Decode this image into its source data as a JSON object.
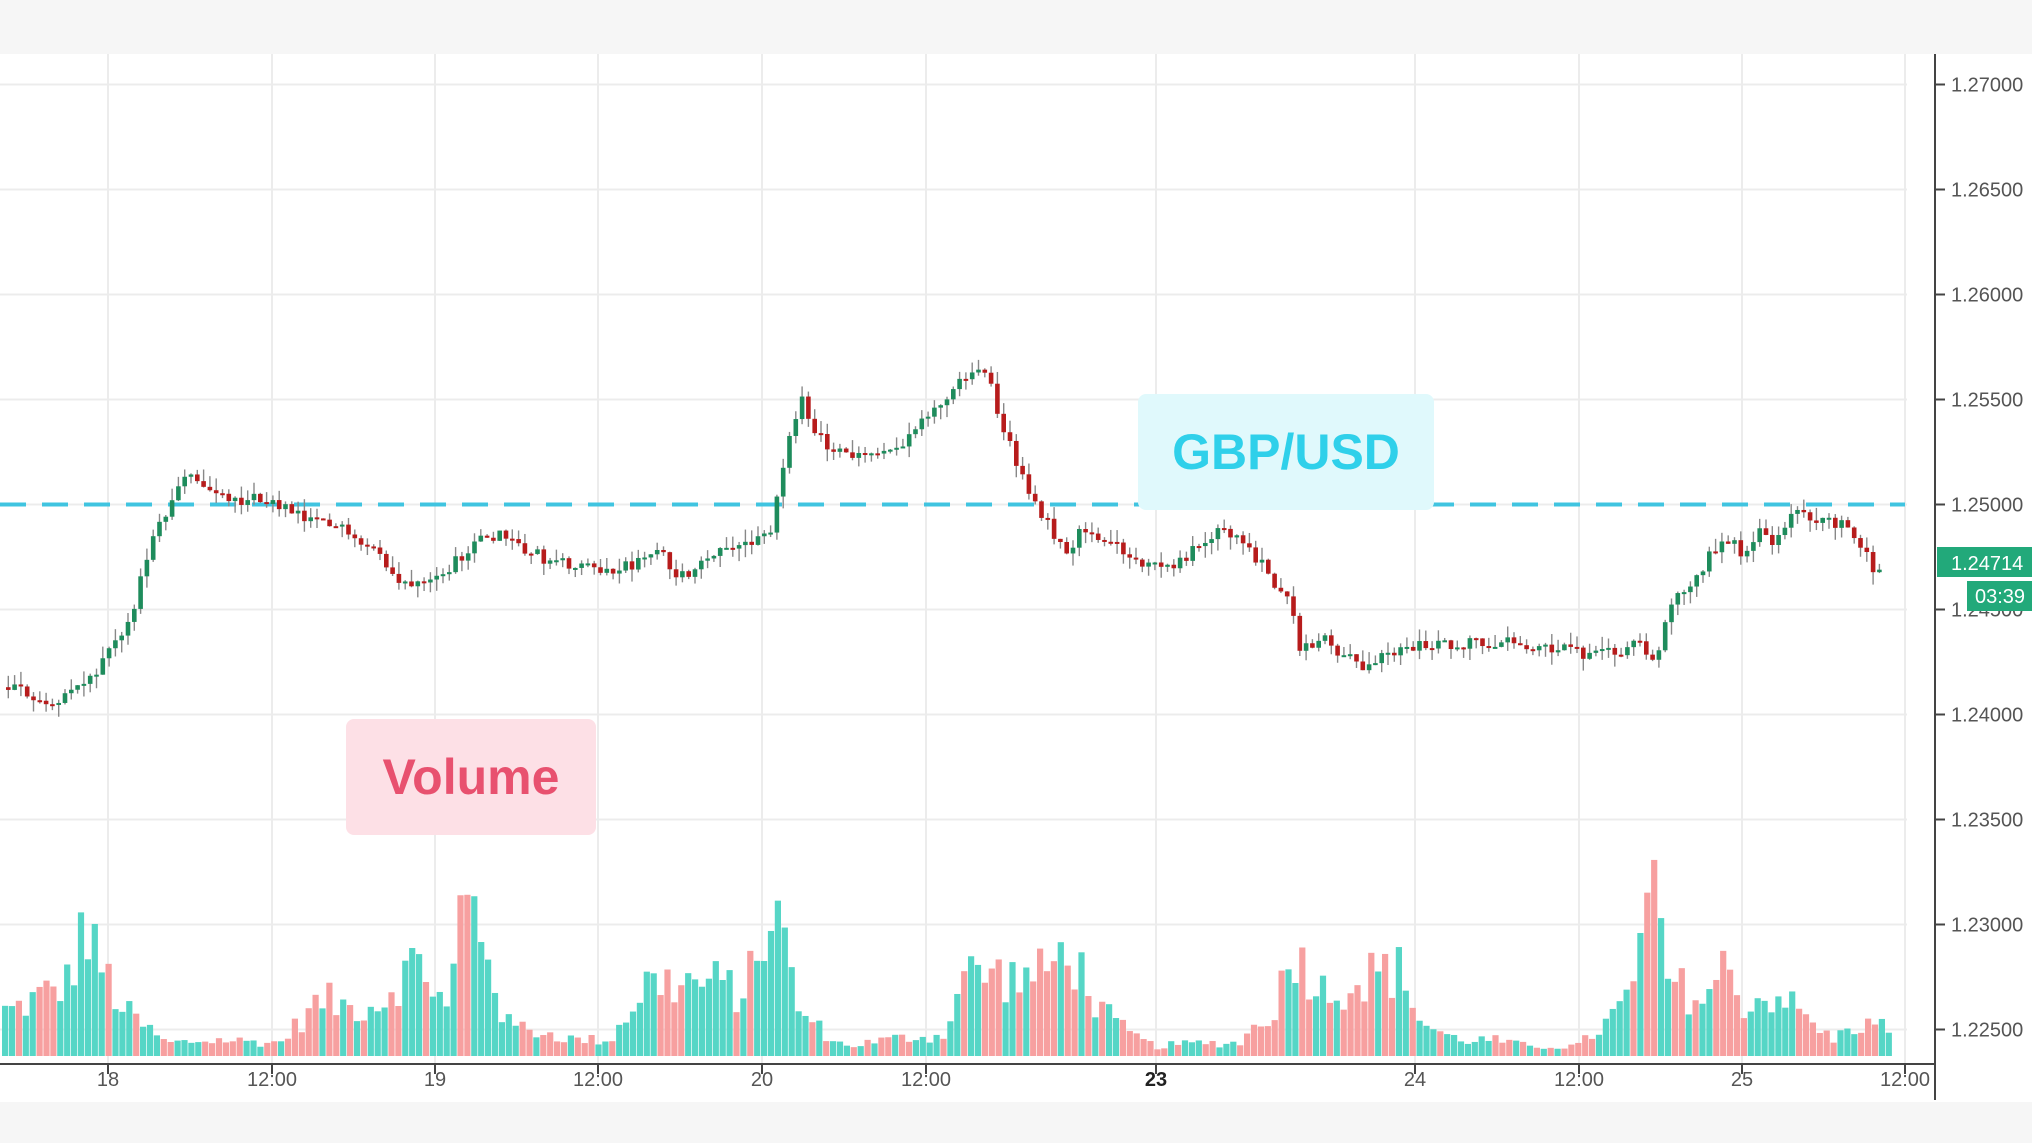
{
  "chart_data": {
    "type": "candlestick",
    "instrument": "GBP/USD",
    "x_tick_labels": [
      {
        "label": "18",
        "bold": false
      },
      {
        "label": "12:00",
        "bold": false
      },
      {
        "label": "19",
        "bold": false
      },
      {
        "label": "12:00",
        "bold": false
      },
      {
        "label": "20",
        "bold": false
      },
      {
        "label": "12:00",
        "bold": false
      },
      {
        "label": "23",
        "bold": true
      },
      {
        "label": "24",
        "bold": false
      },
      {
        "label": "12:00",
        "bold": false
      },
      {
        "label": "25",
        "bold": false
      },
      {
        "label": "12:00",
        "bold": false
      }
    ],
    "y_tick_labels": [
      "1.27000",
      "1.26500",
      "1.26000",
      "1.25500",
      "1.25000",
      "1.24500",
      "1.24000",
      "1.23500",
      "1.23000",
      "1.22500"
    ],
    "ylim": [
      1.2245,
      1.2705
    ],
    "resistance_level": 1.25,
    "current_price_label": "1.24714",
    "countdown_label": "03:39",
    "price_path": [
      {
        "t": 0,
        "p": 1.2413
      },
      {
        "t": 6,
        "p": 1.2405
      },
      {
        "t": 12,
        "p": 1.2418
      },
      {
        "t": 17,
        "p": 1.2445
      },
      {
        "t": 20,
        "p": 1.2482
      },
      {
        "t": 23,
        "p": 1.25
      },
      {
        "t": 25,
        "p": 1.2517
      },
      {
        "t": 28,
        "p": 1.2506
      },
      {
        "t": 32,
        "p": 1.2501
      },
      {
        "t": 36,
        "p": 1.2503
      },
      {
        "t": 42,
        "p": 1.2492
      },
      {
        "t": 48,
        "p": 1.2488
      },
      {
        "t": 52,
        "p": 1.2478
      },
      {
        "t": 55,
        "p": 1.2462
      },
      {
        "t": 58,
        "p": 1.2465
      },
      {
        "t": 62,
        "p": 1.247
      },
      {
        "t": 66,
        "p": 1.2482
      },
      {
        "t": 70,
        "p": 1.2487
      },
      {
        "t": 73,
        "p": 1.2479
      },
      {
        "t": 76,
        "p": 1.2474
      },
      {
        "t": 80,
        "p": 1.247
      },
      {
        "t": 84,
        "p": 1.2468
      },
      {
        "t": 88,
        "p": 1.2471
      },
      {
        "t": 92,
        "p": 1.2477
      },
      {
        "t": 95,
        "p": 1.2465
      },
      {
        "t": 98,
        "p": 1.2474
      },
      {
        "t": 102,
        "p": 1.2482
      },
      {
        "t": 105,
        "p": 1.248
      },
      {
        "t": 108,
        "p": 1.249
      },
      {
        "t": 110,
        "p": 1.2525
      },
      {
        "t": 112,
        "p": 1.255
      },
      {
        "t": 115,
        "p": 1.253
      },
      {
        "t": 119,
        "p": 1.2524
      },
      {
        "t": 124,
        "p": 1.2523
      },
      {
        "t": 128,
        "p": 1.2535
      },
      {
        "t": 132,
        "p": 1.2548
      },
      {
        "t": 135,
        "p": 1.256
      },
      {
        "t": 138,
        "p": 1.2565
      },
      {
        "t": 140,
        "p": 1.2545
      },
      {
        "t": 142,
        "p": 1.2525
      },
      {
        "t": 145,
        "p": 1.2502
      },
      {
        "t": 148,
        "p": 1.2486
      },
      {
        "t": 150,
        "p": 1.2478
      },
      {
        "t": 152,
        "p": 1.249
      },
      {
        "t": 155,
        "p": 1.2484
      },
      {
        "t": 158,
        "p": 1.2476
      },
      {
        "t": 162,
        "p": 1.247
      },
      {
        "t": 166,
        "p": 1.2472
      },
      {
        "t": 170,
        "p": 1.2486
      },
      {
        "t": 174,
        "p": 1.2487
      },
      {
        "t": 178,
        "p": 1.2468
      },
      {
        "t": 181,
        "p": 1.2455
      },
      {
        "t": 183,
        "p": 1.243
      },
      {
        "t": 186,
        "p": 1.2436
      },
      {
        "t": 189,
        "p": 1.2428
      },
      {
        "t": 192,
        "p": 1.2422
      },
      {
        "t": 196,
        "p": 1.243
      },
      {
        "t": 200,
        "p": 1.2433
      },
      {
        "t": 205,
        "p": 1.2434
      },
      {
        "t": 210,
        "p": 1.2435
      },
      {
        "t": 215,
        "p": 1.2433
      },
      {
        "t": 220,
        "p": 1.2432
      },
      {
        "t": 224,
        "p": 1.2427
      },
      {
        "t": 228,
        "p": 1.243
      },
      {
        "t": 231,
        "p": 1.2436
      },
      {
        "t": 233,
        "p": 1.2424
      },
      {
        "t": 236,
        "p": 1.2458
      },
      {
        "t": 239,
        "p": 1.2465
      },
      {
        "t": 241,
        "p": 1.2478
      },
      {
        "t": 244,
        "p": 1.2483
      },
      {
        "t": 246,
        "p": 1.2475
      },
      {
        "t": 248,
        "p": 1.2488
      },
      {
        "t": 250,
        "p": 1.2482
      },
      {
        "t": 253,
        "p": 1.2496
      },
      {
        "t": 257,
        "p": 1.2492
      },
      {
        "t": 260,
        "p": 1.2491
      },
      {
        "t": 262,
        "p": 1.2482
      },
      {
        "t": 264,
        "p": 1.247
      }
    ],
    "volume_peaks": [
      {
        "t": 0,
        "v": 0.28
      },
      {
        "t": 8,
        "v": 0.45
      },
      {
        "t": 10,
        "v": 0.78
      },
      {
        "t": 12,
        "v": 0.62
      },
      {
        "t": 16,
        "v": 0.28
      },
      {
        "t": 22,
        "v": 0.08
      },
      {
        "t": 30,
        "v": 0.1
      },
      {
        "t": 38,
        "v": 0.08
      },
      {
        "t": 44,
        "v": 0.35
      },
      {
        "t": 48,
        "v": 0.3
      },
      {
        "t": 52,
        "v": 0.32
      },
      {
        "t": 55,
        "v": 0.48
      },
      {
        "t": 58,
        "v": 0.6
      },
      {
        "t": 62,
        "v": 0.25
      },
      {
        "t": 64,
        "v": 1.0
      },
      {
        "t": 67,
        "v": 0.78
      },
      {
        "t": 70,
        "v": 0.2
      },
      {
        "t": 75,
        "v": 0.15
      },
      {
        "t": 80,
        "v": 0.1
      },
      {
        "t": 85,
        "v": 0.1
      },
      {
        "t": 90,
        "v": 0.45
      },
      {
        "t": 95,
        "v": 0.45
      },
      {
        "t": 100,
        "v": 0.45
      },
      {
        "t": 104,
        "v": 0.38
      },
      {
        "t": 108,
        "v": 0.95
      },
      {
        "t": 112,
        "v": 0.25
      },
      {
        "t": 118,
        "v": 0.06
      },
      {
        "t": 124,
        "v": 0.1
      },
      {
        "t": 128,
        "v": 0.12
      },
      {
        "t": 132,
        "v": 0.12
      },
      {
        "t": 135,
        "v": 0.5
      },
      {
        "t": 138,
        "v": 0.52
      },
      {
        "t": 142,
        "v": 0.48
      },
      {
        "t": 146,
        "v": 0.5
      },
      {
        "t": 150,
        "v": 0.67
      },
      {
        "t": 154,
        "v": 0.3
      },
      {
        "t": 158,
        "v": 0.15
      },
      {
        "t": 162,
        "v": 0.06
      },
      {
        "t": 168,
        "v": 0.08
      },
      {
        "t": 174,
        "v": 0.08
      },
      {
        "t": 179,
        "v": 0.3
      },
      {
        "t": 182,
        "v": 0.66
      },
      {
        "t": 186,
        "v": 0.4
      },
      {
        "t": 190,
        "v": 0.45
      },
      {
        "t": 194,
        "v": 0.52
      },
      {
        "t": 197,
        "v": 0.52
      },
      {
        "t": 200,
        "v": 0.2
      },
      {
        "t": 205,
        "v": 0.1
      },
      {
        "t": 210,
        "v": 0.1
      },
      {
        "t": 215,
        "v": 0.06
      },
      {
        "t": 222,
        "v": 0.06
      },
      {
        "t": 226,
        "v": 0.2
      },
      {
        "t": 230,
        "v": 0.4
      },
      {
        "t": 232,
        "v": 1.1
      },
      {
        "t": 235,
        "v": 0.45
      },
      {
        "t": 240,
        "v": 0.35
      },
      {
        "t": 243,
        "v": 0.55
      },
      {
        "t": 246,
        "v": 0.3
      },
      {
        "t": 250,
        "v": 0.4
      },
      {
        "t": 254,
        "v": 0.25
      },
      {
        "t": 258,
        "v": 0.1
      },
      {
        "t": 262,
        "v": 0.2
      },
      {
        "t": 265,
        "v": 0.18
      }
    ],
    "colors": {
      "up": "#1e8c5c",
      "down": "#b71c1c",
      "vol_up": "#56d6c6",
      "vol_down": "#f7a0a0",
      "level": "#40c4e0",
      "grid": "#ececec",
      "price_badge": "#22a97a"
    }
  },
  "annotations": {
    "gbpusd": "GBP/USD",
    "volume": "Volume"
  }
}
